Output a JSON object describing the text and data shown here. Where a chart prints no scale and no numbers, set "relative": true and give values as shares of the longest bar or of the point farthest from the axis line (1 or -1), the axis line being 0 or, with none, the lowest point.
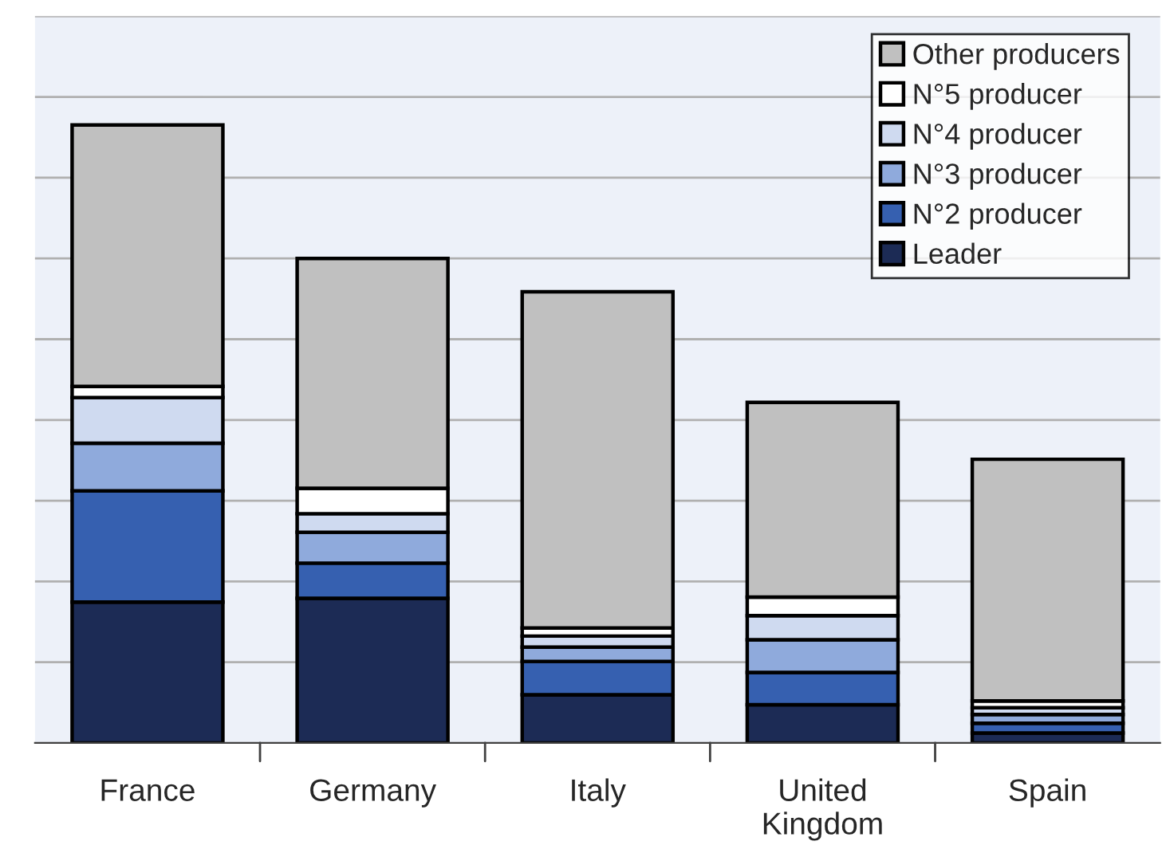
{
  "chart_data": {
    "type": "bar",
    "stacked": true,
    "relative": true,
    "categories": [
      "France",
      "Germany",
      "Italy",
      "United\nKingdom",
      "Spain"
    ],
    "series": [
      {
        "name": "Leader",
        "color": "#1c2b55",
        "values": [
          0.228,
          0.234,
          0.078,
          0.062,
          0.016
        ]
      },
      {
        "name": "N°2 producer",
        "color": "#3660b0",
        "values": [
          0.18,
          0.057,
          0.054,
          0.052,
          0.016
        ]
      },
      {
        "name": "N°3 producer",
        "color": "#8faadc",
        "values": [
          0.077,
          0.05,
          0.023,
          0.053,
          0.014
        ]
      },
      {
        "name": "N°4 producer",
        "color": "#cfdaf0",
        "values": [
          0.074,
          0.03,
          0.018,
          0.039,
          0.011
        ]
      },
      {
        "name": "N°5 producer",
        "color": "#ffffff",
        "values": [
          0.018,
          0.041,
          0.013,
          0.03,
          0.011
        ]
      },
      {
        "name": "Other producers",
        "color": "#c0c0c0",
        "values": [
          0.423,
          0.372,
          0.544,
          0.315,
          0.391
        ]
      }
    ],
    "grid": "y",
    "legend": "top right"
  }
}
